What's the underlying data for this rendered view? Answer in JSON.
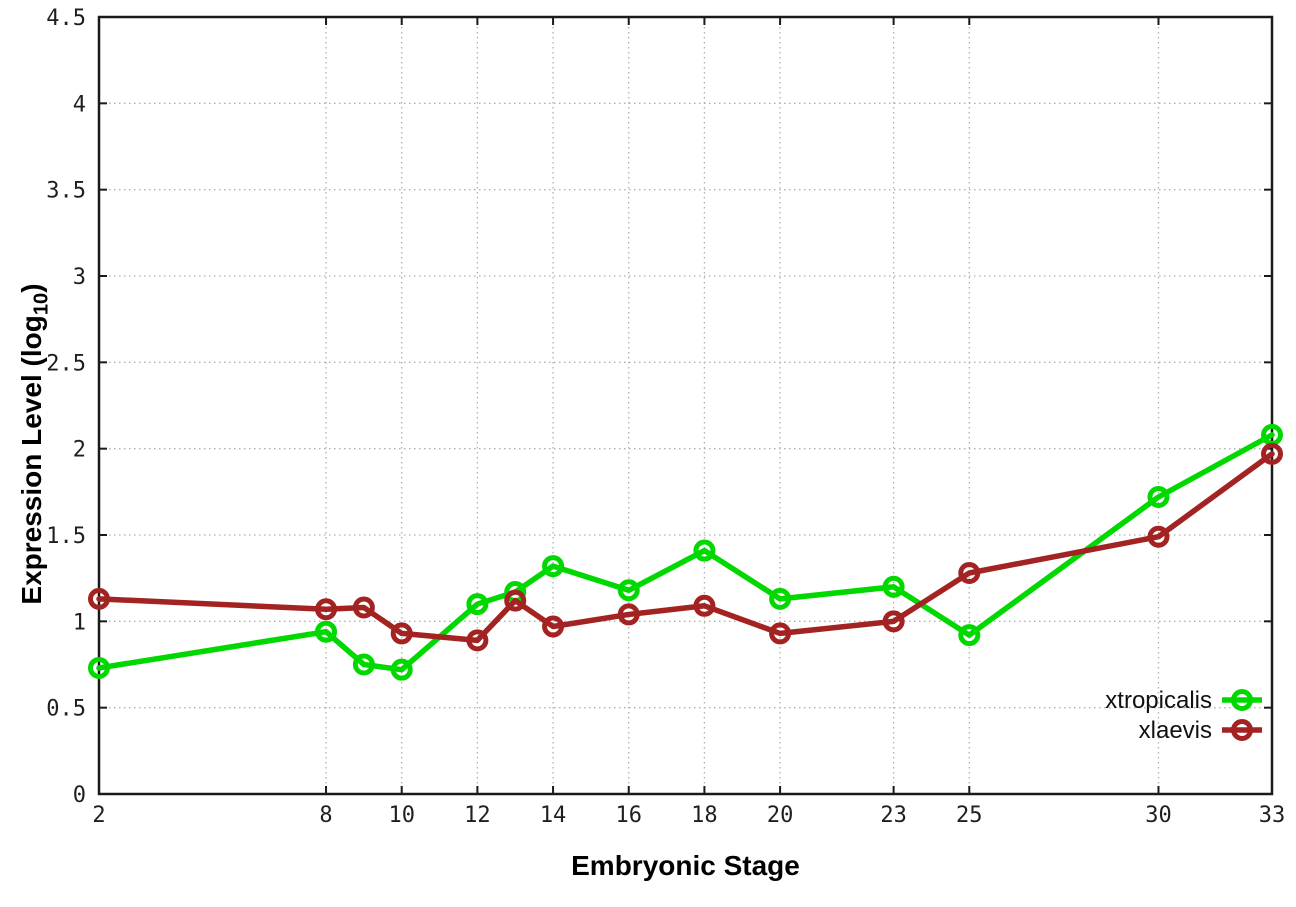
{
  "chart_data": {
    "type": "line",
    "title": "",
    "xlabel": "Embryonic Stage",
    "ylabel": "Expression Level (log10)",
    "ylabel_parts": {
      "prefix": "Expression Level (log",
      "sub": "10",
      "suffix": ")"
    },
    "x": [
      2,
      8,
      9,
      10,
      12,
      13,
      14,
      16,
      18,
      20,
      23,
      25,
      30,
      33
    ],
    "x_tick_labels": [
      "2",
      "8",
      "10",
      "12",
      "14",
      "16",
      "18",
      "20",
      "23",
      "25",
      "30",
      "33"
    ],
    "x_tick_values": [
      2,
      8,
      10,
      12,
      14,
      16,
      18,
      20,
      23,
      25,
      30,
      33
    ],
    "y_tick_labels": [
      "0",
      "0.5",
      "1",
      "1.5",
      "2",
      "2.5",
      "3",
      "3.5",
      "4",
      "4.5"
    ],
    "y_tick_values": [
      0,
      0.5,
      1,
      1.5,
      2,
      2.5,
      3,
      3.5,
      4,
      4.5
    ],
    "xlim": [
      2,
      33
    ],
    "ylim": [
      0,
      4.5
    ],
    "grid": true,
    "legend_position": "bottom-right",
    "series": [
      {
        "name": "xtropicalis",
        "color": "#00d800",
        "marker": "open-circle",
        "values": [
          0.73,
          0.94,
          0.75,
          0.72,
          1.1,
          1.17,
          1.32,
          1.18,
          1.41,
          1.13,
          1.2,
          0.92,
          1.72,
          2.08
        ]
      },
      {
        "name": "xlaevis",
        "color": "#a32222",
        "marker": "open-circle",
        "values": [
          1.13,
          1.07,
          1.08,
          0.93,
          0.89,
          1.12,
          0.97,
          1.04,
          1.09,
          0.93,
          1.0,
          1.28,
          1.49,
          1.97
        ]
      }
    ],
    "colors": {
      "border": "#1a1a1a",
      "grid": "#b0b0b0",
      "tick_text": "#1f1f1f"
    }
  }
}
